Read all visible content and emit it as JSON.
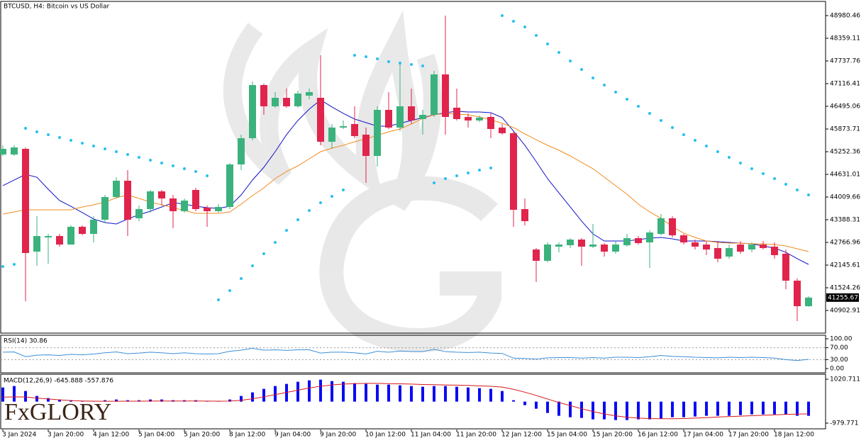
{
  "logo": "FxGLORY",
  "chart_data": [
    {
      "type": "candlestick",
      "title": "BTCUSD, H4:  Bitcoin vs US Dollar",
      "up_color": "#3bb27d",
      "down_color": "#e0244c",
      "open": [
        45175,
        45175,
        45330,
        42515,
        42903,
        42942,
        42709,
        43195,
        43000,
        43389,
        44010,
        44457,
        43428,
        43680,
        44165,
        43971,
        43622,
        44204,
        43719,
        43622,
        43738,
        44903,
        45622,
        47078,
        46495,
        46728,
        46495,
        46787,
        46728,
        45525,
        45913,
        46010,
        45719,
        45136,
        46398,
        45913,
        46495,
        46146,
        46262,
        47369,
        46457,
        46204,
        46107,
        46204,
        45913,
        45758,
        43680,
        42573,
        42263,
        42651,
        42690,
        42845,
        42651,
        42709,
        42515,
        42690,
        42884,
        42767,
        43000,
        43428,
        42962,
        42767,
        42709,
        42612,
        42379,
        42709,
        42573,
        42709,
        42651,
        42457,
        41719,
        41020
      ],
      "high": [
        45428,
        45428,
        45369,
        43486,
        43000,
        43000,
        43233,
        43233,
        43486,
        44068,
        44554,
        44748,
        43777,
        44204,
        44204,
        44068,
        43971,
        44262,
        43777,
        43816,
        44942,
        45719,
        47175,
        47117,
        46884,
        46981,
        46923,
        46981,
        47893,
        46010,
        46107,
        46495,
        45913,
        46495,
        46884,
        47699,
        46981,
        46398,
        47466,
        48980,
        46981,
        46301,
        46243,
        46301,
        46010,
        45816,
        43971,
        42612,
        42767,
        42767,
        42884,
        42884,
        43272,
        42748,
        42806,
        43000,
        42942,
        43097,
        43544,
        43486,
        43000,
        42845,
        42806,
        42806,
        42709,
        42806,
        42767,
        42806,
        42767,
        42573,
        41777,
        41292
      ],
      "low": [
        45136,
        45136,
        41156,
        42127,
        42185,
        42651,
        42709,
        42962,
        42767,
        43292,
        43971,
        42942,
        43350,
        43583,
        43777,
        43156,
        43583,
        43622,
        43195,
        43583,
        43680,
        44748,
        45563,
        46262,
        46457,
        46457,
        46457,
        46690,
        45428,
        45330,
        45874,
        45622,
        44398,
        44845,
        45874,
        45816,
        46010,
        45719,
        46204,
        45719,
        46107,
        45913,
        46068,
        45622,
        45719,
        43195,
        43233,
        41680,
        42224,
        42496,
        42612,
        42127,
        42612,
        42379,
        42457,
        42651,
        42709,
        42068,
        42962,
        42903,
        42709,
        42573,
        42418,
        42224,
        42321,
        42457,
        42496,
        42573,
        42321,
        41486,
        40612,
        41000
      ],
      "close": [
        45330,
        45369,
        42476,
        42942,
        42942,
        42709,
        43195,
        43000,
        43389,
        44010,
        44457,
        43389,
        43680,
        44165,
        43971,
        43622,
        43913,
        43680,
        43622,
        43738,
        44903,
        45622,
        47078,
        46495,
        46728,
        46495,
        46845,
        46884,
        45525,
        45913,
        45952,
        45680,
        45136,
        46398,
        45913,
        46495,
        46107,
        46262,
        47369,
        46204,
        46146,
        46107,
        46185,
        45874,
        45758,
        43661,
        43350,
        42263,
        42709,
        42709,
        42845,
        42651,
        42709,
        42515,
        42709,
        42884,
        42748,
        43039,
        43428,
        42962,
        42767,
        42651,
        42573,
        42321,
        42612,
        42515,
        42709,
        42612,
        42418,
        41719,
        41020,
        41256
      ],
      "series": [
        {
          "color": "#1212c8",
          "values": [
            44321,
            44476,
            44631,
            44553,
            44223,
            43913,
            43757,
            43583,
            43408,
            43311,
            43272,
            43408,
            43524,
            43622,
            43738,
            43854,
            43816,
            43757,
            43719,
            43699,
            43757,
            44068,
            44476,
            44825,
            45252,
            45719,
            46107,
            46417,
            46670,
            46476,
            46301,
            46146,
            46048,
            45952,
            45952,
            46029,
            46107,
            46185,
            46262,
            46320,
            46359,
            46340,
            46340,
            46320,
            46185,
            45816,
            45428,
            44981,
            44515,
            44126,
            43738,
            43350,
            43000,
            42806,
            42806,
            42806,
            42845,
            42884,
            42903,
            42864,
            42806,
            42806,
            42806,
            42786,
            42767,
            42748,
            42729,
            42670,
            42612,
            42496,
            42321,
            42165
          ]
        },
        {
          "color": "#f28c1e",
          "values": [
            43544,
            43602,
            43661,
            43661,
            43661,
            43661,
            43661,
            43738,
            43796,
            43874,
            43990,
            44068,
            43971,
            43874,
            43796,
            43719,
            43641,
            43563,
            43563,
            43563,
            43602,
            43816,
            44049,
            44262,
            44515,
            44709,
            44864,
            45058,
            45252,
            45349,
            45428,
            45524,
            45602,
            45699,
            45796,
            45874,
            46010,
            46165,
            46262,
            46301,
            46281,
            46262,
            46204,
            46126,
            46029,
            45913,
            45738,
            45582,
            45427,
            45291,
            45136,
            44961,
            44786,
            44554,
            44321,
            44087,
            43816,
            43602,
            43428,
            43195,
            43020,
            42903,
            42806,
            42767,
            42748,
            42748,
            42729,
            42729,
            42709,
            42670,
            42592,
            42515
          ]
        }
      ],
      "psar": {
        "color": "#27c0ef",
        "values": [
          42107,
          42165,
          45893,
          45796,
          45719,
          45641,
          45563,
          45486,
          45408,
          45330,
          45253,
          45175,
          45097,
          45020,
          44942,
          44864,
          44787,
          44709,
          44593,
          41195,
          41447,
          41777,
          42127,
          42457,
          42767,
          43097,
          43389,
          43641,
          43855,
          44029,
          44204,
          47893,
          47855,
          47796,
          47719,
          47680,
          47641,
          47602,
          44398,
          44515,
          44593,
          44670,
          44748,
          44806,
          48980,
          48825,
          48670,
          48437,
          48204,
          47971,
          47738,
          47505,
          47272,
          47078,
          46884,
          46690,
          46495,
          46301,
          46107,
          45913,
          45719,
          45563,
          45408,
          45253,
          45097,
          44942,
          44787,
          44650,
          44515,
          44359,
          44204,
          44068
        ]
      },
      "last_price": 41255.67,
      "ylim": [
        40281.6,
        49368.8
      ],
      "yticks": [
        48980.46,
        48359.11,
        47737.76,
        47116.41,
        46495.06,
        45873.71,
        45252.36,
        44631.01,
        44009.66,
        43388.31,
        42766.96,
        42145.61,
        41524.26,
        40902.91
      ],
      "grid": false
    },
    {
      "type": "line",
      "title": "RSI(14) 30.86",
      "color": "#3b8fd6",
      "values": [
        55,
        56,
        40,
        45,
        46,
        44,
        48,
        46,
        49,
        53,
        56,
        50,
        52,
        55,
        53,
        50,
        53,
        50,
        49,
        50,
        58,
        62,
        68,
        62,
        63,
        61,
        63,
        63,
        52,
        55,
        55,
        53,
        49,
        58,
        55,
        59,
        57,
        57,
        65,
        57,
        55,
        54,
        55,
        52,
        51,
        35,
        34,
        32,
        36,
        37,
        37,
        35,
        37,
        35,
        38,
        38,
        37,
        40,
        44,
        41,
        40,
        38,
        37,
        36,
        38,
        37,
        38,
        37,
        35,
        30,
        27,
        30.86
      ],
      "ylim": [
        0,
        100
      ],
      "yticks": [
        {
          "value": 100,
          "label": "100.00"
        },
        {
          "value": 70,
          "label": "70.00"
        },
        {
          "value": 30,
          "label": "30.00"
        },
        {
          "value": 0,
          "label": "0.00"
        }
      ]
    },
    {
      "type": "bar",
      "title": "MACD(12,26,9) -645.888 -557.876",
      "color": "#0a0af5",
      "values": [
        645,
        710,
        484,
        258,
        161,
        97,
        65,
        32,
        32,
        65,
        97,
        65,
        65,
        97,
        97,
        65,
        65,
        65,
        32,
        32,
        97,
        258,
        420,
        581,
        710,
        807,
        904,
        968,
        1000,
        936,
        904,
        839,
        807,
        774,
        774,
        742,
        710,
        678,
        710,
        710,
        678,
        645,
        613,
        581,
        484,
        65,
        -161,
        -323,
        -516,
        -645,
        -710,
        -742,
        -807,
        -807,
        -839,
        -839,
        -807,
        -807,
        -774,
        -710,
        -710,
        -678,
        -645,
        -645,
        -645,
        -613,
        -581,
        -581,
        -581,
        -581,
        -645,
        -645.888
      ],
      "signal": {
        "color": "#d81818",
        "values": [
          200,
          220,
          210,
          160,
          120,
          80,
          50,
          30,
          20,
          15,
          15,
          20,
          20,
          25,
          30,
          30,
          30,
          30,
          25,
          20,
          25,
          60,
          130,
          220,
          320,
          420,
          520,
          620,
          700,
          760,
          800,
          820,
          830,
          830,
          820,
          810,
          800,
          780,
          770,
          760,
          750,
          740,
          720,
          700,
          660,
          560,
          430,
          280,
          120,
          -40,
          -180,
          -320,
          -450,
          -560,
          -650,
          -710,
          -750,
          -770,
          -780,
          -780,
          -770,
          -750,
          -730,
          -700,
          -680,
          -660,
          -640,
          -620,
          -600,
          -580,
          -570,
          -557.876
        ]
      },
      "categories": [
        "3 Jan 2024",
        null,
        null,
        null,
        "3 Jan 20:00",
        null,
        null,
        null,
        "4 Jan 12:00",
        null,
        null,
        null,
        "5 Jan 04:00",
        null,
        null,
        null,
        "5 Jan 20:00",
        null,
        null,
        null,
        "8 Jan 12:00",
        null,
        null,
        null,
        "9 Jan 04:00",
        null,
        null,
        null,
        "9 Jan 20:00",
        null,
        null,
        null,
        "10 Jan 12:00",
        null,
        null,
        null,
        "11 Jan 04:00",
        null,
        null,
        null,
        "11 Jan 20:00",
        null,
        null,
        null,
        "12 Jan 12:00",
        null,
        null,
        null,
        "15 Jan 04:00",
        null,
        null,
        null,
        "15 Jan 20:00",
        null,
        null,
        null,
        "16 Jan 12:00",
        null,
        null,
        null,
        "17 Jan 04:00",
        null,
        null,
        null,
        "17 Jan 20:00",
        null,
        null,
        null,
        "18 Jan 12:00",
        null,
        null,
        null
      ],
      "ylim": [
        -1237.9,
        1246.6
      ],
      "yticks": [
        1020.711,
        -979.771
      ]
    }
  ]
}
